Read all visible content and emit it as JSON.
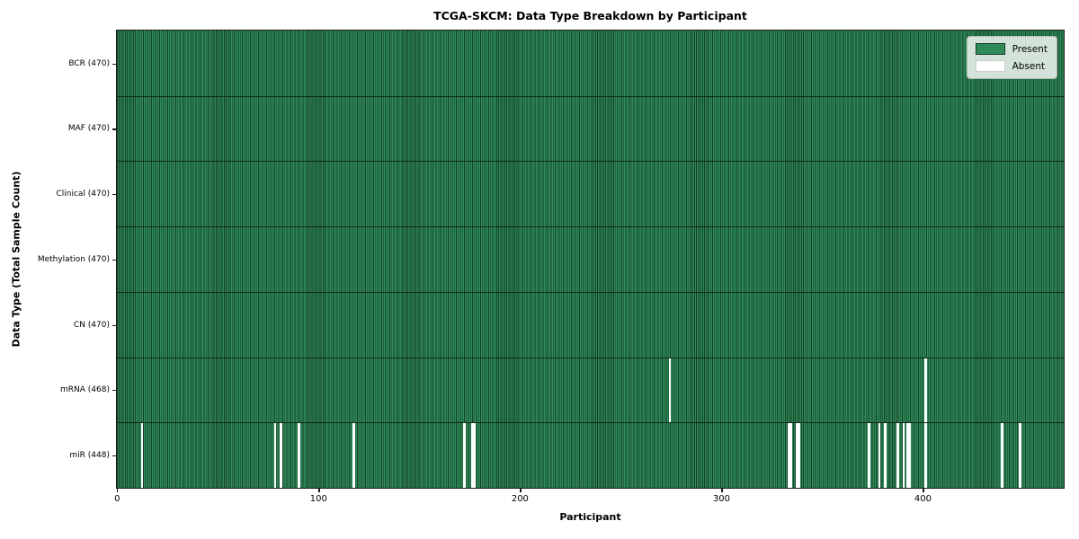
{
  "title": "TCGA-SKCM: Data Type Breakdown by Participant",
  "colors": {
    "present": "#2e8b57",
    "present_edge": "#163f29",
    "absent": "#ffffff",
    "row_boundary": "#12281b",
    "spine": "#1a1a1a",
    "legend_bg": "#f4f8f4",
    "legend_border": "#b2bcb2"
  },
  "chart_data": {
    "type": "heatmap",
    "title": "TCGA-SKCM: Data Type Breakdown by Participant",
    "xlabel": "Participant",
    "ylabel": "Data Type (Total Sample Count)",
    "n_participants": 470,
    "x_ticks": [
      0,
      100,
      200,
      300,
      400
    ],
    "legend_position": "upper right",
    "grid": "row boundaries only",
    "value_encoding": {
      "present": 1,
      "absent": 0
    },
    "rows": [
      {
        "label": "BCR (470)",
        "data_type": "BCR",
        "present_count": 470,
        "absent_participants": []
      },
      {
        "label": "MAF (470)",
        "data_type": "MAF",
        "present_count": 470,
        "absent_participants": []
      },
      {
        "label": "Clinical (470)",
        "data_type": "Clinical",
        "present_count": 470,
        "absent_participants": []
      },
      {
        "label": "Methylation (470)",
        "data_type": "Methylation",
        "present_count": 470,
        "absent_participants": []
      },
      {
        "label": "CN (470)",
        "data_type": "CN",
        "present_count": 470,
        "absent_participants": []
      },
      {
        "label": "mRNA (468)",
        "data_type": "mRNA",
        "present_count": 468,
        "absent_participants": [
          274,
          401
        ]
      },
      {
        "label": "miR (448)",
        "data_type": "miR",
        "present_count": 448,
        "absent_participants": [
          12,
          78,
          81,
          90,
          117,
          172,
          176,
          177,
          333,
          334,
          337,
          338,
          373,
          378,
          381,
          387,
          390,
          392,
          393,
          401,
          439,
          448
        ]
      }
    ],
    "legend": [
      {
        "label": "Present",
        "color": "#2e8b57"
      },
      {
        "label": "Absent",
        "color": "#ffffff"
      }
    ]
  }
}
